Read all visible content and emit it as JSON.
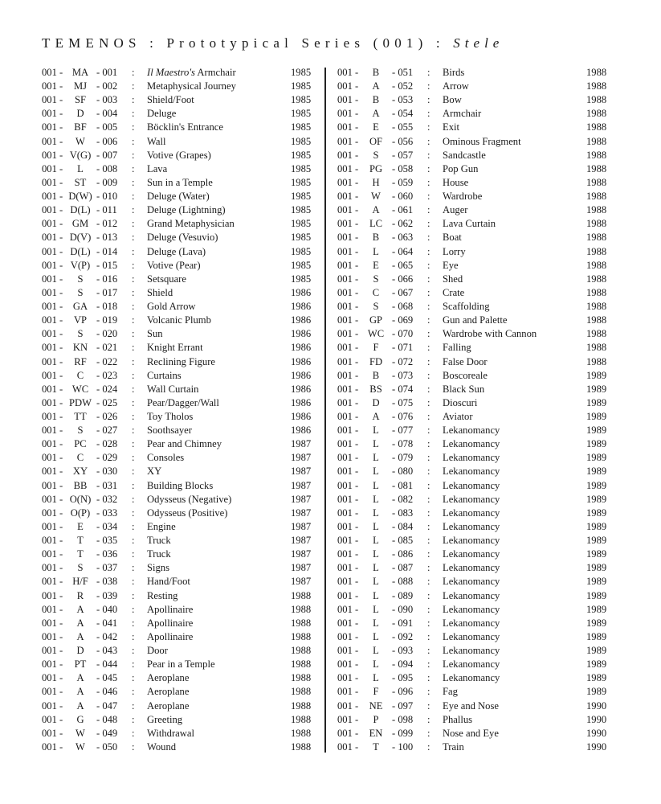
{
  "header": {
    "title_main": "TEMENOS : Prototypical Series (001) : ",
    "title_italic": "Stele"
  },
  "columns": [
    [
      {
        "prefix": "001 -",
        "code": "MA",
        "num": "- 001",
        "title_italic": "Il Maestro's",
        "title": " Armchair",
        "year": "1985"
      },
      {
        "prefix": "001 -",
        "code": "MJ",
        "num": "- 002",
        "title": "Metaphysical Journey",
        "year": "1985"
      },
      {
        "prefix": "001 -",
        "code": "SF",
        "num": "- 003",
        "title": "Shield/Foot",
        "year": "1985"
      },
      {
        "prefix": "001 -",
        "code": "D",
        "num": "- 004",
        "title": "Deluge",
        "year": "1985"
      },
      {
        "prefix": "001 -",
        "code": "BF",
        "num": "- 005",
        "title": "Böcklin's Entrance",
        "year": "1985"
      },
      {
        "prefix": "001 -",
        "code": "W",
        "num": "- 006",
        "title": "Wall",
        "year": "1985"
      },
      {
        "prefix": "001 -",
        "code": "V(G)",
        "num": "- 007",
        "title": "Votive (Grapes)",
        "year": "1985"
      },
      {
        "prefix": "001 -",
        "code": "L",
        "num": "- 008",
        "title": "Lava",
        "year": "1985"
      },
      {
        "prefix": "001 -",
        "code": "ST",
        "num": "- 009",
        "title": "Sun in a Temple",
        "year": "1985"
      },
      {
        "prefix": "001 -",
        "code": "D(W)",
        "num": "- 010",
        "title": "Deluge (Water)",
        "year": "1985"
      },
      {
        "prefix": "001 -",
        "code": "D(L)",
        "num": "- 011",
        "title": "Deluge (Lightning)",
        "year": "1985"
      },
      {
        "prefix": "001 -",
        "code": "GM",
        "num": "- 012",
        "title": "Grand Metaphysician",
        "year": "1985"
      },
      {
        "prefix": "001 -",
        "code": "D(V)",
        "num": "- 013",
        "title": "Deluge (Vesuvio)",
        "year": "1985"
      },
      {
        "prefix": "001 -",
        "code": "D(L)",
        "num": "- 014",
        "title": "Deluge (Lava)",
        "year": "1985"
      },
      {
        "prefix": "001 -",
        "code": "V(P)",
        "num": "- 015",
        "title": "Votive (Pear)",
        "year": "1985"
      },
      {
        "prefix": "001 -",
        "code": "S",
        "num": "- 016",
        "title": "Setsquare",
        "year": "1985"
      },
      {
        "prefix": "001 -",
        "code": "S",
        "num": "- 017",
        "title": "Shield",
        "year": "1986"
      },
      {
        "prefix": "001 -",
        "code": "GA",
        "num": "- 018",
        "title": "Gold Arrow",
        "year": "1986"
      },
      {
        "prefix": "001 -",
        "code": "VP",
        "num": "- 019",
        "title": "Volcanic Plumb",
        "year": "1986"
      },
      {
        "prefix": "001 -",
        "code": "S",
        "num": "- 020",
        "title": "Sun",
        "year": "1986"
      },
      {
        "prefix": "001 -",
        "code": "KN",
        "num": "- 021",
        "title": "Knight Errant",
        "year": "1986"
      },
      {
        "prefix": "001 -",
        "code": "RF",
        "num": "- 022",
        "title": "Reclining Figure",
        "year": "1986"
      },
      {
        "prefix": "001 -",
        "code": "C",
        "num": "- 023",
        "title": "Curtains",
        "year": "1986"
      },
      {
        "prefix": "001 -",
        "code": "WC",
        "num": "- 024",
        "title": "Wall Curtain",
        "year": "1986"
      },
      {
        "prefix": "001 -",
        "code": "PDW",
        "num": "- 025",
        "title": "Pear/Dagger/Wall",
        "year": "1986"
      },
      {
        "prefix": "001 -",
        "code": "TT",
        "num": "- 026",
        "title": "Toy Tholos",
        "year": "1986"
      },
      {
        "prefix": "001 -",
        "code": "S",
        "num": "- 027",
        "title": "Soothsayer",
        "year": "1986"
      },
      {
        "prefix": "001 -",
        "code": "PC",
        "num": "- 028",
        "title": "Pear and Chimney",
        "year": "1987"
      },
      {
        "prefix": "001 -",
        "code": "C",
        "num": "- 029",
        "title": "Consoles",
        "year": "1987"
      },
      {
        "prefix": "001 -",
        "code": "XY",
        "num": "- 030",
        "title": "XY",
        "year": "1987"
      },
      {
        "prefix": "001 -",
        "code": "BB",
        "num": "- 031",
        "title": "Building Blocks",
        "year": "1987"
      },
      {
        "prefix": "001 -",
        "code": "O(N)",
        "num": "- 032",
        "title": "Odysseus (Negative)",
        "year": "1987"
      },
      {
        "prefix": "001 -",
        "code": "O(P)",
        "num": "- 033",
        "title": "Odysseus (Positive)",
        "year": "1987"
      },
      {
        "prefix": "001 -",
        "code": "E",
        "num": "- 034",
        "title": "Engine",
        "year": "1987"
      },
      {
        "prefix": "001 -",
        "code": "T",
        "num": "- 035",
        "title": "Truck",
        "year": "1987"
      },
      {
        "prefix": "001 -",
        "code": "T",
        "num": "- 036",
        "title": "Truck",
        "year": "1987"
      },
      {
        "prefix": "001 -",
        "code": "S",
        "num": "- 037",
        "title": "Signs",
        "year": "1987"
      },
      {
        "prefix": "001 -",
        "code": "H/F",
        "num": "- 038",
        "title": "Hand/Foot",
        "year": "1987"
      },
      {
        "prefix": "001 -",
        "code": "R",
        "num": "- 039",
        "title": "Resting",
        "year": "1988"
      },
      {
        "prefix": "001 -",
        "code": "A",
        "num": "- 040",
        "title": "Apollinaire",
        "year": "1988"
      },
      {
        "prefix": "001 -",
        "code": "A",
        "num": "- 041",
        "title": "Apollinaire",
        "year": "1988"
      },
      {
        "prefix": "001 -",
        "code": "A",
        "num": "- 042",
        "title": "Apollinaire",
        "year": "1988"
      },
      {
        "prefix": "001 -",
        "code": "D",
        "num": "- 043",
        "title": "Door",
        "year": "1988"
      },
      {
        "prefix": "001 -",
        "code": "PT",
        "num": "- 044",
        "title": "Pear in a Temple",
        "year": "1988"
      },
      {
        "prefix": "001 -",
        "code": "A",
        "num": "- 045",
        "title": "Aeroplane",
        "year": "1988"
      },
      {
        "prefix": "001 -",
        "code": "A",
        "num": "- 046",
        "title": "Aeroplane",
        "year": "1988"
      },
      {
        "prefix": "001 -",
        "code": "A",
        "num": "- 047",
        "title": "Aeroplane",
        "year": "1988"
      },
      {
        "prefix": "001 -",
        "code": "G",
        "num": "- 048",
        "title": "Greeting",
        "year": "1988"
      },
      {
        "prefix": "001 -",
        "code": "W",
        "num": "- 049",
        "title": "Withdrawal",
        "year": "1988"
      },
      {
        "prefix": "001 -",
        "code": "W",
        "num": "- 050",
        "title": "Wound",
        "year": "1988"
      }
    ],
    [
      {
        "prefix": "001 -",
        "code": "B",
        "num": "- 051",
        "title": "Birds",
        "year": "1988"
      },
      {
        "prefix": "001 -",
        "code": "A",
        "num": "- 052",
        "title": "Arrow",
        "year": "1988"
      },
      {
        "prefix": "001 -",
        "code": "B",
        "num": "- 053",
        "title": "Bow",
        "year": "1988"
      },
      {
        "prefix": "001 -",
        "code": "A",
        "num": "- 054",
        "title": "Armchair",
        "year": "1988"
      },
      {
        "prefix": "001 -",
        "code": "E",
        "num": "- 055",
        "title": "Exit",
        "year": "1988"
      },
      {
        "prefix": "001 -",
        "code": "OF",
        "num": "- 056",
        "title": "Ominous Fragment",
        "year": "1988"
      },
      {
        "prefix": "001 -",
        "code": "S",
        "num": "- 057",
        "title": "Sandcastle",
        "year": "1988"
      },
      {
        "prefix": "001 -",
        "code": "PG",
        "num": "- 058",
        "title": "Pop Gun",
        "year": "1988"
      },
      {
        "prefix": "001 -",
        "code": "H",
        "num": "- 059",
        "title": "House",
        "year": "1988"
      },
      {
        "prefix": "001 -",
        "code": "W",
        "num": "- 060",
        "title": "Wardrobe",
        "year": "1988"
      },
      {
        "prefix": "001 -",
        "code": "A",
        "num": "- 061",
        "title": "Auger",
        "year": "1988"
      },
      {
        "prefix": "001 -",
        "code": "LC",
        "num": "- 062",
        "title": "Lava Curtain",
        "year": "1988"
      },
      {
        "prefix": "001 -",
        "code": "B",
        "num": "- 063",
        "title": "Boat",
        "year": "1988"
      },
      {
        "prefix": "001 -",
        "code": "L",
        "num": "- 064",
        "title": "Lorry",
        "year": "1988"
      },
      {
        "prefix": "001 -",
        "code": "E",
        "num": "- 065",
        "title": "Eye",
        "year": "1988"
      },
      {
        "prefix": "001 -",
        "code": "S",
        "num": "- 066",
        "title": "Shed",
        "year": "1988"
      },
      {
        "prefix": "001 -",
        "code": "C",
        "num": "- 067",
        "title": "Crate",
        "year": "1988"
      },
      {
        "prefix": "001 -",
        "code": "S",
        "num": "- 068",
        "title": "Scaffolding",
        "year": "1988"
      },
      {
        "prefix": "001 -",
        "code": "GP",
        "num": "- 069",
        "title": "Gun and Palette",
        "year": "1988"
      },
      {
        "prefix": "001 -",
        "code": "WC",
        "num": "- 070",
        "title": "Wardrobe with Cannon",
        "year": "1988"
      },
      {
        "prefix": "001 -",
        "code": "F",
        "num": "- 071",
        "title": "Falling",
        "year": "1988"
      },
      {
        "prefix": "001 -",
        "code": "FD",
        "num": "- 072",
        "title": "False Door",
        "year": "1988"
      },
      {
        "prefix": "001 -",
        "code": "B",
        "num": "- 073",
        "title": "Boscoreale",
        "year": "1989"
      },
      {
        "prefix": "001 -",
        "code": "BS",
        "num": "- 074",
        "title": "Black Sun",
        "year": "1989"
      },
      {
        "prefix": "001 -",
        "code": "D",
        "num": "- 075",
        "title": "Dioscuri",
        "year": "1989"
      },
      {
        "prefix": "001 -",
        "code": "A",
        "num": "- 076",
        "title": "Aviator",
        "year": "1989"
      },
      {
        "prefix": "001 -",
        "code": "L",
        "num": "- 077",
        "title": "Lekanomancy",
        "year": "1989"
      },
      {
        "prefix": "001 -",
        "code": "L",
        "num": "- 078",
        "title": "Lekanomancy",
        "year": "1989"
      },
      {
        "prefix": "001 -",
        "code": "L",
        "num": "- 079",
        "title": "Lekanomancy",
        "year": "1989"
      },
      {
        "prefix": "001 -",
        "code": "L",
        "num": "- 080",
        "title": "Lekanomancy",
        "year": "1989"
      },
      {
        "prefix": "001 -",
        "code": "L",
        "num": "- 081",
        "title": "Lekanomancy",
        "year": "1989"
      },
      {
        "prefix": "001 -",
        "code": "L",
        "num": "- 082",
        "title": "Lekanomancy",
        "year": "1989"
      },
      {
        "prefix": "001 -",
        "code": "L",
        "num": "- 083",
        "title": "Lekanomancy",
        "year": "1989"
      },
      {
        "prefix": "001 -",
        "code": "L",
        "num": "- 084",
        "title": "Lekanomancy",
        "year": "1989"
      },
      {
        "prefix": "001 -",
        "code": "L",
        "num": "- 085",
        "title": "Lekanomancy",
        "year": "1989"
      },
      {
        "prefix": "001 -",
        "code": "L",
        "num": "- 086",
        "title": "Lekanomancy",
        "year": "1989"
      },
      {
        "prefix": "001 -",
        "code": "L",
        "num": "- 087",
        "title": "Lekanomancy",
        "year": "1989"
      },
      {
        "prefix": "001 -",
        "code": "L",
        "num": "- 088",
        "title": "Lekanomancy",
        "year": "1989"
      },
      {
        "prefix": "001 -",
        "code": "L",
        "num": "- 089",
        "title": "Lekanomancy",
        "year": "1989"
      },
      {
        "prefix": "001 -",
        "code": "L",
        "num": "- 090",
        "title": "Lekanomancy",
        "year": "1989"
      },
      {
        "prefix": "001 -",
        "code": "L",
        "num": "- 091",
        "title": "Lekanomancy",
        "year": "1989"
      },
      {
        "prefix": "001 -",
        "code": "L",
        "num": "- 092",
        "title": "Lekanomancy",
        "year": "1989"
      },
      {
        "prefix": "001 -",
        "code": "L",
        "num": "- 093",
        "title": "Lekanomancy",
        "year": "1989"
      },
      {
        "prefix": "001 -",
        "code": "L",
        "num": "- 094",
        "title": "Lekanomancy",
        "year": "1989"
      },
      {
        "prefix": "001 -",
        "code": "L",
        "num": "- 095",
        "title": "Lekanomancy",
        "year": "1989"
      },
      {
        "prefix": "001 -",
        "code": "F",
        "num": "- 096",
        "title": "Fag",
        "year": "1989"
      },
      {
        "prefix": "001 -",
        "code": "NE",
        "num": "- 097",
        "title": "Eye and Nose",
        "year": "1990"
      },
      {
        "prefix": "001 -",
        "code": "P",
        "num": "- 098",
        "title": "Phallus",
        "year": "1990"
      },
      {
        "prefix": "001 -",
        "code": "EN",
        "num": "- 099",
        "title": "Nose and Eye",
        "year": "1990"
      },
      {
        "prefix": "001 -",
        "code": "T",
        "num": "- 100",
        "title": "Train",
        "year": "1990"
      }
    ]
  ],
  "separator": ":"
}
